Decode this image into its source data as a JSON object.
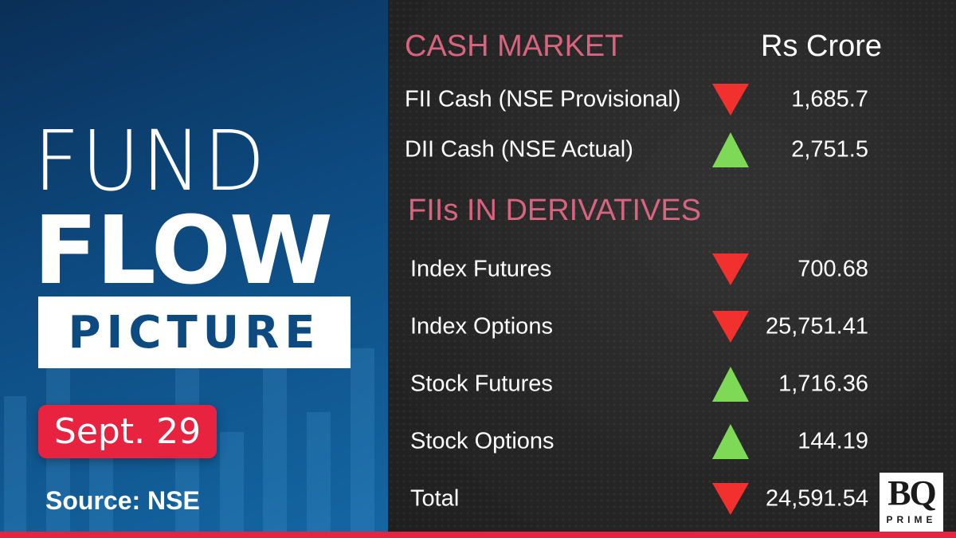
{
  "title": {
    "line1": "FUND",
    "line2": "FLOW",
    "line3": "PICTURE"
  },
  "date": "Sept. 29",
  "source": "Source: NSE",
  "colors": {
    "accent_red": "#e8233f",
    "heading_pink": "#d8647e",
    "down": "#f2302e",
    "up": "#7ed957",
    "panel_blue": "#0d4a80"
  },
  "cash_market": {
    "heading": "CASH MARKET",
    "unit": "Rs Crore",
    "rows": [
      {
        "label": "FII Cash (NSE Provisional)",
        "direction": "down",
        "value": "1,685.7"
      },
      {
        "label": "DII Cash (NSE Actual)",
        "direction": "up",
        "value": "2,751.5"
      }
    ]
  },
  "derivatives": {
    "heading": "FIIs IN DERIVATIVES",
    "rows": [
      {
        "label": "Index Futures",
        "direction": "down",
        "value": "700.68"
      },
      {
        "label": "Index Options",
        "direction": "down",
        "value": "25,751.41"
      },
      {
        "label": "Stock Futures",
        "direction": "up",
        "value": "1,716.36"
      },
      {
        "label": "Stock Options",
        "direction": "up",
        "value": "144.19"
      },
      {
        "label": "Total",
        "direction": "down",
        "value": "24,591.54"
      }
    ]
  },
  "logo": {
    "text": "BQ",
    "sub": "PRIME"
  }
}
